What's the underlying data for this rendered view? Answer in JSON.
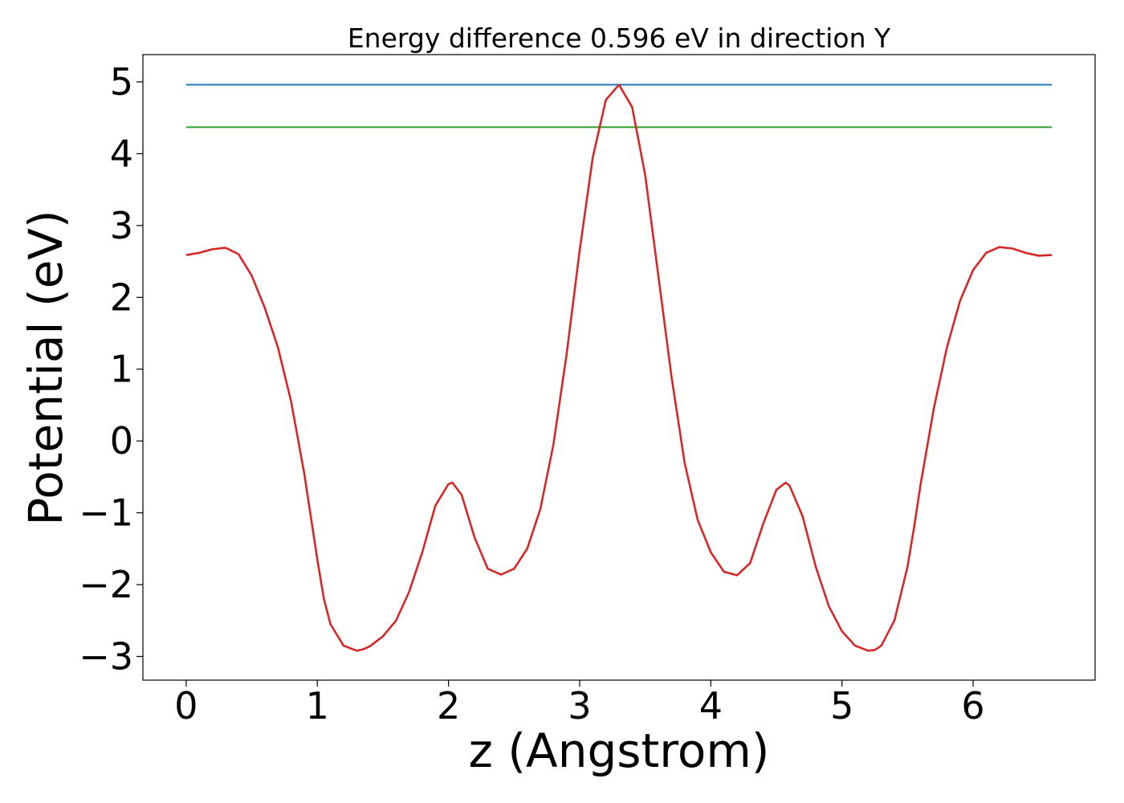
{
  "chart_data": {
    "type": "line",
    "title": "Energy difference 0.596 eV in direction Y",
    "xlabel": "z (Angstrom)",
    "ylabel": "Potential (eV)",
    "xlim": [
      -0.33,
      6.93
    ],
    "ylim": [
      -3.33,
      5.38
    ],
    "xticks": [
      0,
      1,
      2,
      3,
      4,
      5,
      6
    ],
    "xtick_labels": [
      "0",
      "1",
      "2",
      "3",
      "4",
      "5",
      "6"
    ],
    "yticks": [
      -3,
      -2,
      -1,
      0,
      1,
      2,
      3,
      4,
      5
    ],
    "ytick_labels": [
      "−3",
      "−2",
      "−1",
      "0",
      "1",
      "2",
      "3",
      "4",
      "5"
    ],
    "grid": false,
    "series": [
      {
        "color": "#1f77b4",
        "x": [
          0,
          6.6
        ],
        "y": [
          4.96,
          4.96
        ]
      },
      {
        "color": "#2ca02c",
        "x": [
          0,
          6.6
        ],
        "y": [
          4.37,
          4.37
        ]
      },
      {
        "color": "#d62728",
        "x": [
          0,
          0.1,
          0.2,
          0.3,
          0.4,
          0.5,
          0.6,
          0.7,
          0.8,
          0.9,
          1.0,
          1.05,
          1.1,
          1.2,
          1.3,
          1.35,
          1.4,
          1.5,
          1.6,
          1.7,
          1.8,
          1.9,
          2.0,
          2.03,
          2.1,
          2.2,
          2.3,
          2.4,
          2.5,
          2.6,
          2.7,
          2.8,
          2.9,
          3.0,
          3.1,
          3.2,
          3.3,
          3.4,
          3.5,
          3.6,
          3.7,
          3.8,
          3.9,
          4.0,
          4.1,
          4.2,
          4.3,
          4.4,
          4.5,
          4.57,
          4.6,
          4.7,
          4.8,
          4.9,
          5.0,
          5.1,
          5.2,
          5.25,
          5.3,
          5.4,
          5.5,
          5.55,
          5.6,
          5.7,
          5.8,
          5.9,
          6.0,
          6.1,
          6.2,
          6.3,
          6.4,
          6.5,
          6.6
        ],
        "y": [
          2.59,
          2.62,
          2.67,
          2.69,
          2.6,
          2.3,
          1.85,
          1.3,
          0.55,
          -0.45,
          -1.65,
          -2.2,
          -2.55,
          -2.85,
          -2.92,
          -2.9,
          -2.86,
          -2.72,
          -2.5,
          -2.1,
          -1.55,
          -0.9,
          -0.6,
          -0.58,
          -0.75,
          -1.35,
          -1.78,
          -1.86,
          -1.78,
          -1.5,
          -0.95,
          -0.05,
          1.2,
          2.65,
          3.95,
          4.75,
          4.96,
          4.65,
          3.7,
          2.3,
          0.9,
          -0.3,
          -1.1,
          -1.55,
          -1.82,
          -1.87,
          -1.7,
          -1.15,
          -0.68,
          -0.58,
          -0.62,
          -1.05,
          -1.75,
          -2.3,
          -2.65,
          -2.85,
          -2.92,
          -2.91,
          -2.85,
          -2.5,
          -1.75,
          -1.2,
          -0.6,
          0.45,
          1.3,
          1.95,
          2.38,
          2.62,
          2.7,
          2.68,
          2.62,
          2.58,
          2.59
        ]
      }
    ]
  }
}
